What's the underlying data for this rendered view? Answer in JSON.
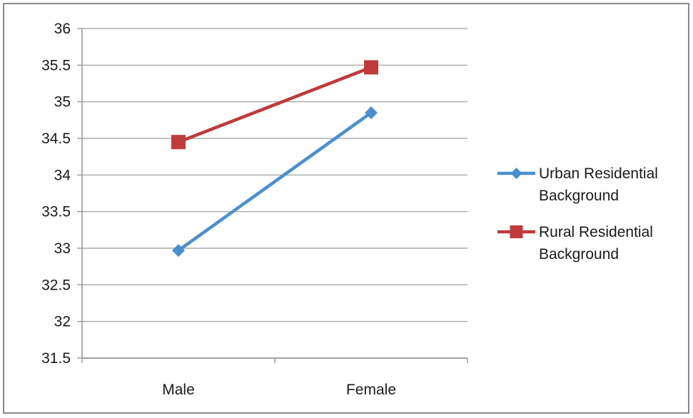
{
  "chart_data": {
    "type": "line",
    "title": "",
    "xlabel": "",
    "ylabel": "",
    "categories": [
      "Male",
      "Female"
    ],
    "y_ticks": [
      "36",
      "35.5",
      "35",
      "34.5",
      "34",
      "33.5",
      "33",
      "32.5",
      "32",
      "31.5"
    ],
    "ylim": [
      31.5,
      36
    ],
    "grid": true,
    "legend_position": "right",
    "series": [
      {
        "name_line1": "Urban Residential",
        "name_line2": "Background",
        "values": [
          32.97,
          34.85
        ],
        "color": "#4a8fd1",
        "marker": "diamond"
      },
      {
        "name_line1": "Rural Residential",
        "name_line2": "Background",
        "values": [
          34.45,
          35.47
        ],
        "color": "#bf3a3a",
        "marker": "square"
      }
    ]
  }
}
